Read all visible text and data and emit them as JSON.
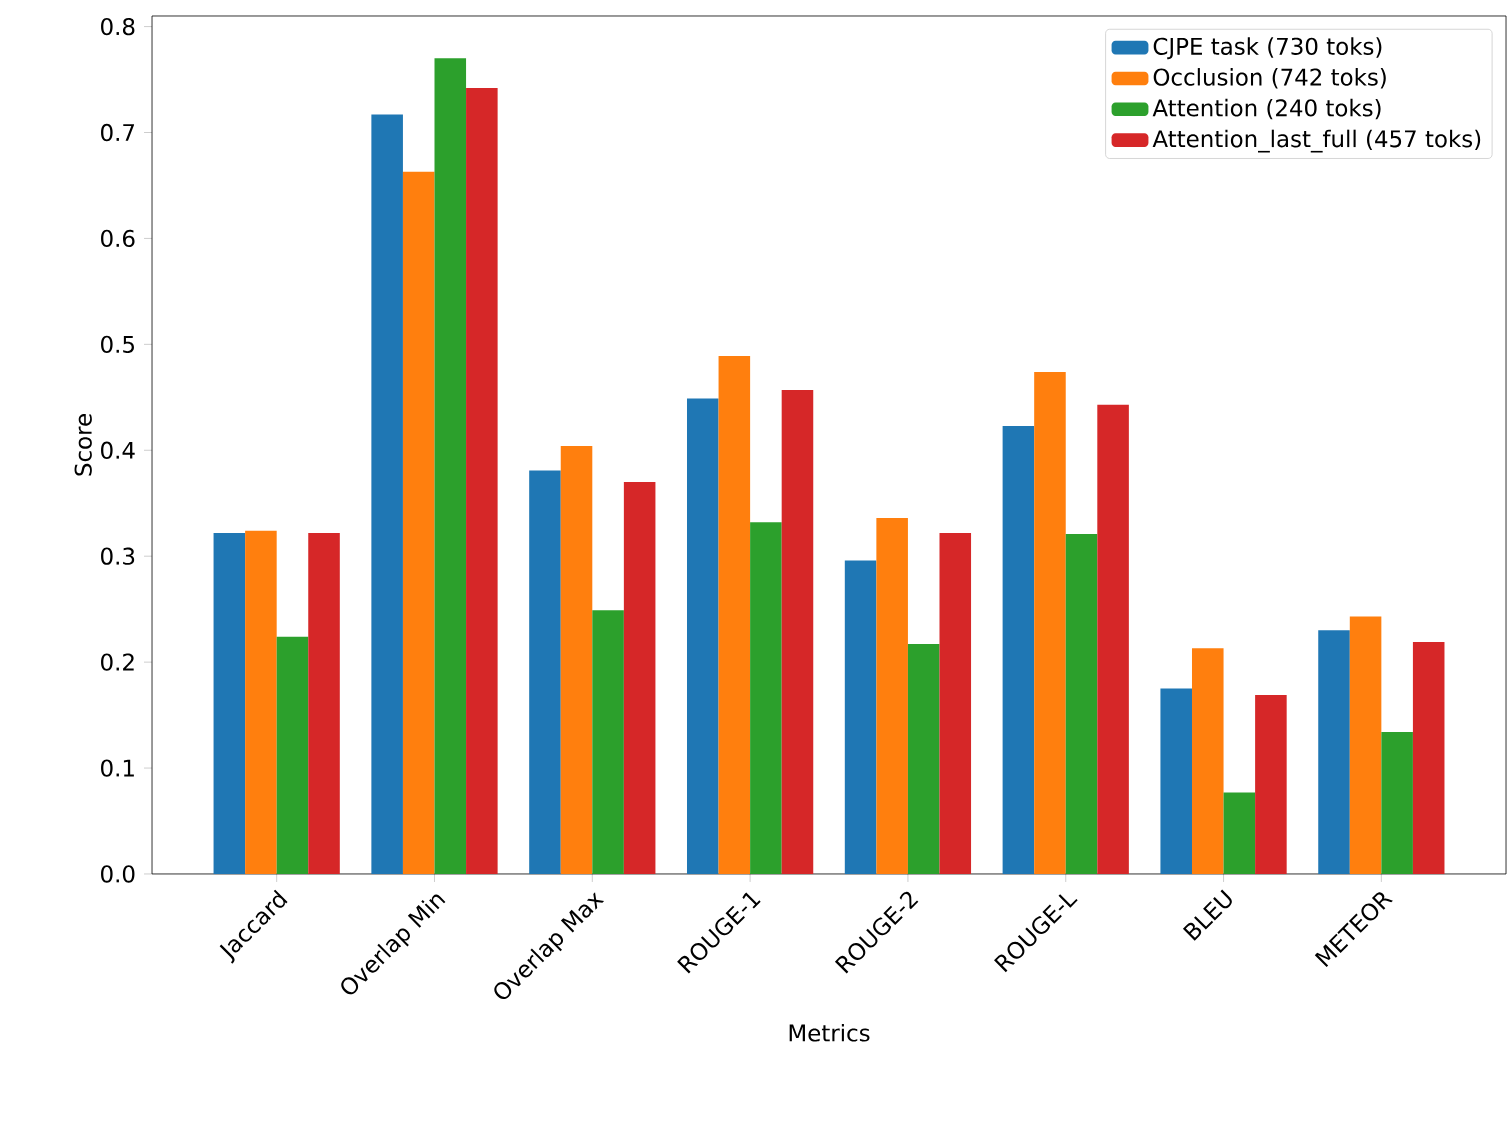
{
  "chart_data": {
    "type": "bar",
    "xlabel": "Metrics",
    "ylabel": "Score",
    "categories": [
      "Jaccard",
      "Overlap Min",
      "Overlap Max",
      "ROUGE-1",
      "ROUGE-2",
      "ROUGE-L",
      "BLEU",
      "METEOR"
    ],
    "series": [
      {
        "name": "CJPE task (730 toks)",
        "color": "#1f77b4",
        "values": [
          0.322,
          0.717,
          0.381,
          0.449,
          0.296,
          0.423,
          0.175,
          0.23
        ]
      },
      {
        "name": "Occlusion (742 toks)",
        "color": "#ff7f0e",
        "values": [
          0.324,
          0.663,
          0.404,
          0.489,
          0.336,
          0.474,
          0.213,
          0.243
        ]
      },
      {
        "name": "Attention (240 toks)",
        "color": "#2ca02c",
        "values": [
          0.224,
          0.77,
          0.249,
          0.332,
          0.217,
          0.321,
          0.077,
          0.134
        ]
      },
      {
        "name": "Attention_last_full (457 toks)",
        "color": "#d62728",
        "values": [
          0.322,
          0.742,
          0.37,
          0.457,
          0.322,
          0.443,
          0.169,
          0.219
        ]
      }
    ],
    "ylim": [
      0,
      0.81
    ],
    "yticks": [
      {
        "value": 0,
        "label": "0.0"
      },
      0.1,
      0.2,
      0.3,
      0.4,
      0.5,
      0.6,
      0.7,
      0.8
    ],
    "legend": "top right",
    "grid": false
  }
}
